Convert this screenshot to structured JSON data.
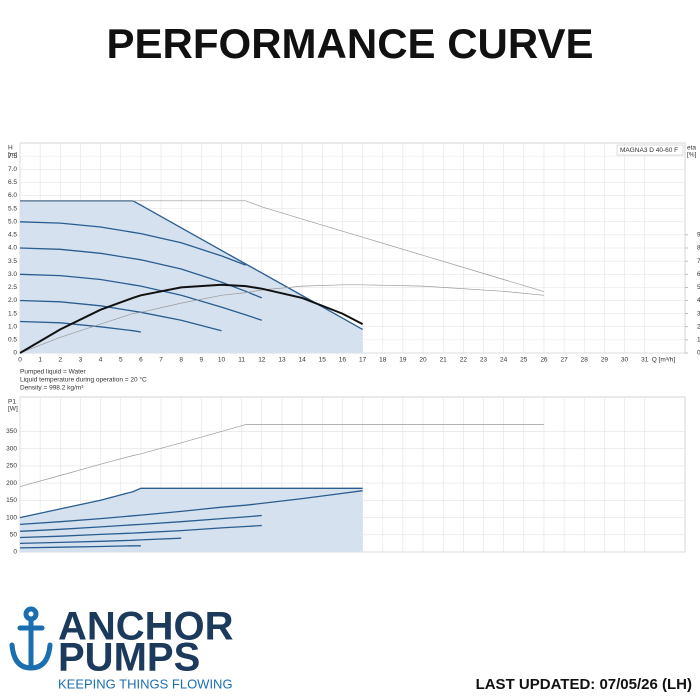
{
  "header": {
    "title": "PERFORMANCE CURVE"
  },
  "chart_data": [
    {
      "type": "line",
      "annotation": "MAGNA3 D 40-60 F",
      "ylabel": [
        "H",
        "[m]"
      ],
      "y2label": [
        "eta",
        "[%]"
      ],
      "xlabel": "Q [m³/h]",
      "notes": [
        "Pumped liquid = Water",
        "Liquid temperature during operation = 20 °C",
        "Density = 998.2 kg/m³"
      ],
      "xlim": [
        0,
        33
      ],
      "xticks": [
        0,
        1,
        2,
        3,
        4,
        5,
        6,
        7,
        8,
        9,
        10,
        11,
        12,
        13,
        14,
        15,
        16,
        17,
        18,
        19,
        20,
        21,
        22,
        23,
        24,
        25,
        26,
        27,
        28,
        29,
        30,
        31
      ],
      "ylim": [
        0,
        8
      ],
      "yticks": [
        0,
        0.5,
        {
          "value": 1,
          "label": "1.0"
        },
        1.5,
        {
          "value": 2,
          "label": "2.0"
        },
        2.5,
        {
          "value": 3,
          "label": "3.0"
        },
        3.5,
        {
          "value": 4,
          "label": "4.0"
        },
        4.5,
        {
          "value": 5,
          "label": "5.0"
        },
        5.5,
        {
          "value": 6,
          "label": "6.0"
        },
        6.5,
        {
          "value": 7,
          "label": "7.0"
        },
        7.5
      ],
      "y2lim": [
        0,
        160
      ],
      "y2ticks": [
        0,
        10,
        20,
        30,
        40,
        50,
        60,
        70,
        80,
        90
      ],
      "grid": true,
      "x": [
        0,
        2,
        4,
        5.6,
        6,
        8,
        10,
        11.2,
        12,
        14,
        16,
        17,
        20,
        24,
        26
      ],
      "series": [
        {
          "color": "#2a5d8f",
          "fill": "#d5e1ef",
          "values": [
            5.8,
            5.8,
            5.8,
            5.8,
            5.63,
            4.77,
            3.91,
            3.39,
            3.05,
            2.19,
            1.33,
            0.9,
            null,
            null,
            null
          ]
        },
        {
          "color": "#2a5d8f",
          "values": [
            5.0,
            4.95,
            4.8,
            4.6,
            4.55,
            4.2,
            3.7,
            3.35,
            null,
            null,
            null,
            null,
            null,
            null,
            null
          ]
        },
        {
          "color": "#2a5d8f",
          "values": [
            4.0,
            3.95,
            3.8,
            3.6,
            3.55,
            3.2,
            2.7,
            2.35,
            2.1,
            null,
            null,
            null,
            null,
            null,
            null
          ]
        },
        {
          "color": "#2a5d8f",
          "values": [
            3.0,
            2.95,
            2.8,
            2.6,
            2.55,
            2.2,
            1.75,
            1.45,
            1.25,
            null,
            null,
            null,
            null,
            null,
            null
          ]
        },
        {
          "color": "#2a5d8f",
          "values": [
            2.0,
            1.95,
            1.8,
            1.6,
            1.55,
            1.25,
            0.85,
            null,
            null,
            null,
            null,
            null,
            null,
            null,
            null
          ]
        },
        {
          "color": "#2a5d8f",
          "values": [
            1.2,
            1.15,
            1.0,
            0.85,
            0.8,
            null,
            null,
            null,
            null,
            null,
            null,
            null,
            null,
            null,
            null
          ]
        },
        {
          "color": "#999999",
          "values": [
            5.8,
            5.8,
            5.8,
            5.8,
            5.8,
            5.8,
            5.8,
            5.8,
            5.57,
            5.1,
            4.64,
            4.41,
            3.72,
            2.8,
            2.34
          ]
        },
        {
          "color": "#999999",
          "axis": "y2",
          "values": [
            0,
            12,
            22,
            30,
            31,
            38,
            44,
            46,
            48,
            51,
            52,
            52,
            51,
            47,
            44
          ]
        },
        {
          "color": "#111111",
          "axis": "y2",
          "values": [
            0,
            18,
            33,
            42,
            44,
            50,
            52,
            51,
            49,
            42,
            30,
            22,
            null,
            null,
            null
          ]
        }
      ]
    },
    {
      "type": "line",
      "ylabel": [
        "P1",
        "[W]"
      ],
      "xlim": [
        0,
        33
      ],
      "xticks": [
        0,
        1,
        2,
        3,
        4,
        5,
        6,
        7,
        8,
        9,
        10,
        11,
        12,
        13,
        14,
        15,
        16,
        17,
        18,
        19,
        20,
        21,
        22,
        23,
        24,
        25,
        26,
        27,
        28,
        29,
        30,
        31
      ],
      "xtick_labels": false,
      "ylim": [
        0,
        450
      ],
      "yticks": [
        0,
        50,
        100,
        150,
        200,
        250,
        300,
        350
      ],
      "grid": true,
      "x": [
        0,
        2,
        4,
        5.6,
        6,
        8,
        10,
        11.2,
        12,
        14,
        16,
        17,
        20,
        24,
        26
      ],
      "series": [
        {
          "color": "#2a5d8f",
          "fill": "#d5e1ef",
          "values": [
            100,
            125,
            150,
            175,
            185,
            185,
            185,
            185,
            185,
            185,
            185,
            185,
            null,
            null,
            null
          ]
        },
        {
          "color": "#2a5d8f",
          "values": [
            80,
            88,
            97,
            105,
            107,
            118,
            130,
            136,
            141,
            155,
            170,
            178,
            null,
            null,
            null
          ]
        },
        {
          "color": "#2a5d8f",
          "values": [
            60,
            66,
            73,
            79,
            80,
            88,
            97,
            102,
            106,
            null,
            null,
            null,
            null,
            null,
            null
          ]
        },
        {
          "color": "#2a5d8f",
          "values": [
            42,
            46,
            51,
            55,
            56,
            62,
            70,
            74,
            77,
            null,
            null,
            null,
            null,
            null,
            null
          ]
        },
        {
          "color": "#2a5d8f",
          "values": [
            25,
            28,
            31,
            34,
            35,
            40,
            null,
            null,
            null,
            null,
            null,
            null,
            null,
            null,
            null
          ]
        },
        {
          "color": "#2a5d8f",
          "values": [
            12,
            14,
            16,
            18,
            18,
            null,
            null,
            null,
            null,
            null,
            null,
            null,
            null,
            null,
            null
          ]
        },
        {
          "color": "#999999",
          "values": [
            190,
            222,
            255,
            280,
            285,
            317,
            350,
            370,
            370,
            370,
            370,
            370,
            370,
            370,
            370
          ]
        }
      ]
    }
  ],
  "logo": {
    "line1": "ANCHOR",
    "line2": "PUMPS",
    "tagline": "KEEPING THINGS FLOWING"
  },
  "footer": {
    "updated": "LAST UPDATED: 07/05/26 (LH)"
  }
}
